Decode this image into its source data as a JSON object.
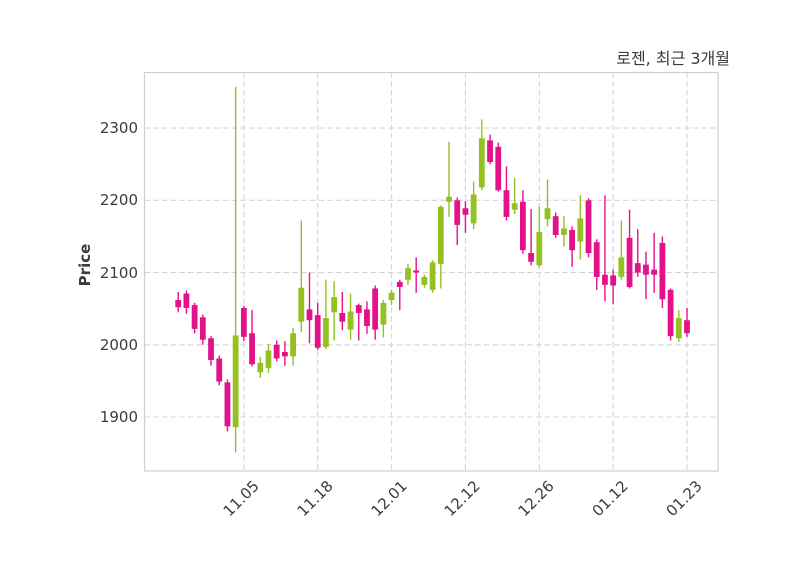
{
  "title": "로젠, 최근 3개월",
  "y_axis": {
    "label": "Price",
    "ticks": [
      2300,
      2200,
      2100,
      2000,
      1900
    ]
  },
  "x_axis": {
    "tick_labels": [
      "11.05",
      "11.18",
      "12.01",
      "12.12",
      "12.26",
      "01.12",
      "01.23"
    ],
    "tick_candle_indices": [
      8,
      17,
      26,
      35,
      44,
      53,
      62
    ]
  },
  "colors": {
    "up": "#94c120",
    "down": "#e3128b",
    "grid": "#d5d5d5",
    "spine": "#cfcfcf",
    "text": "#3b3b3b",
    "background": "#ffffff"
  },
  "chart_data": {
    "type": "candlestick",
    "title": "로젠, 최근 3개월",
    "ylabel": "Price",
    "ylim": [
      1825,
      2380
    ],
    "grid": true,
    "y_tick_values": [
      1900,
      2000,
      2100,
      2200,
      2300
    ],
    "x_tick_labels": [
      "11.05",
      "11.18",
      "12.01",
      "12.12",
      "12.26",
      "01.12",
      "01.23"
    ],
    "x_tick_at_candle": [
      8,
      17,
      26,
      35,
      44,
      53,
      62
    ],
    "up_means": "close >= open",
    "candle_columns": [
      "open",
      "high",
      "low",
      "close"
    ],
    "candles": [
      [
        2062,
        2073,
        2045,
        2052
      ],
      [
        2071,
        2075,
        2043,
        2051
      ],
      [
        2055,
        2058,
        2016,
        2022
      ],
      [
        2038,
        2042,
        2000,
        2007
      ],
      [
        2009,
        2012,
        1971,
        1979
      ],
      [
        1981,
        1985,
        1944,
        1949
      ],
      [
        1948,
        1952,
        1880,
        1887
      ],
      [
        1886,
        2357,
        1851,
        2013
      ],
      [
        2051,
        2054,
        2005,
        2011
      ],
      [
        2016,
        2048,
        1970,
        1973
      ],
      [
        1962,
        1983,
        1954,
        1975
      ],
      [
        1968,
        2001,
        1961,
        1992
      ],
      [
        2000,
        2006,
        1977,
        1981
      ],
      [
        1990,
        2005,
        1971,
        1984
      ],
      [
        1984,
        2023,
        1971,
        2016
      ],
      [
        2032,
        2172,
        2018,
        2079
      ],
      [
        2049,
        2100,
        2002,
        2034
      ],
      [
        2041,
        2058,
        1993,
        1996
      ],
      [
        1997,
        2090,
        1994,
        2037
      ],
      [
        2045,
        2088,
        2006,
        2066
      ],
      [
        2044,
        2073,
        2020,
        2032
      ],
      [
        2021,
        2071,
        2007,
        2046
      ],
      [
        2055,
        2057,
        2006,
        2044
      ],
      [
        2049,
        2060,
        2015,
        2026
      ],
      [
        2078,
        2082,
        2007,
        2021
      ],
      [
        2028,
        2062,
        2010,
        2058
      ],
      [
        2062,
        2076,
        2055,
        2072
      ],
      [
        2087,
        2090,
        2048,
        2080
      ],
      [
        2090,
        2112,
        2083,
        2106
      ],
      [
        2103,
        2121,
        2072,
        2100
      ],
      [
        2083,
        2097,
        2079,
        2094
      ],
      [
        2076,
        2117,
        2072,
        2114
      ],
      [
        2112,
        2193,
        2078,
        2191
      ],
      [
        2198,
        2281,
        2177,
        2205
      ],
      [
        2200,
        2204,
        2138,
        2166
      ],
      [
        2189,
        2199,
        2155,
        2180
      ],
      [
        2168,
        2226,
        2160,
        2208
      ],
      [
        2218,
        2312,
        2214,
        2286
      ],
      [
        2283,
        2291,
        2250,
        2253
      ],
      [
        2274,
        2280,
        2212,
        2214
      ],
      [
        2214,
        2247,
        2172,
        2177
      ],
      [
        2187,
        2231,
        2181,
        2196
      ],
      [
        2198,
        2214,
        2126,
        2131
      ],
      [
        2127,
        2188,
        2110,
        2115
      ],
      [
        2110,
        2191,
        2107,
        2156
      ],
      [
        2174,
        2229,
        2164,
        2189
      ],
      [
        2178,
        2183,
        2148,
        2152
      ],
      [
        2152,
        2178,
        2136,
        2161
      ],
      [
        2159,
        2164,
        2108,
        2131
      ],
      [
        2143,
        2207,
        2118,
        2175
      ],
      [
        2200,
        2203,
        2121,
        2127
      ],
      [
        2142,
        2146,
        2076,
        2094
      ],
      [
        2097,
        2207,
        2060,
        2083
      ],
      [
        2096,
        2104,
        2056,
        2082
      ],
      [
        2094,
        2172,
        2090,
        2121
      ],
      [
        2148,
        2187,
        2078,
        2080
      ],
      [
        2113,
        2160,
        2094,
        2100
      ],
      [
        2111,
        2129,
        2063,
        2097
      ],
      [
        2104,
        2155,
        2072,
        2097
      ],
      [
        2141,
        2150,
        2051,
        2063
      ],
      [
        2076,
        2078,
        2006,
        2012
      ],
      [
        2009,
        2048,
        2004,
        2037
      ],
      [
        2034,
        2051,
        2011,
        2016
      ]
    ]
  }
}
